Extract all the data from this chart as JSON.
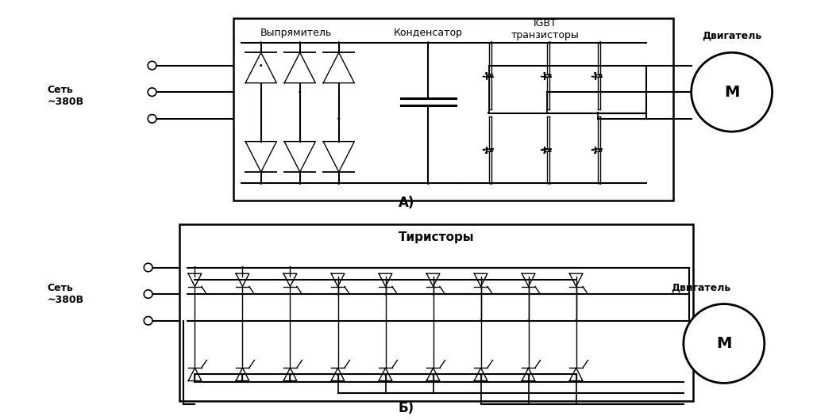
{
  "title_A": "А)",
  "title_B": "Б)",
  "label_rectifier": "Выпрямитель",
  "label_capacitor": "Конденсатор",
  "label_igbt": "IGBT\nтранзисторы",
  "label_thyristors": "Тиристоры",
  "label_motor": "Двигатель",
  "label_network": "Сеть\n~380В",
  "label_M": "М",
  "background": "#ffffff",
  "line_color": "#000000",
  "lw": 1.5,
  "lw_thin": 1.0
}
